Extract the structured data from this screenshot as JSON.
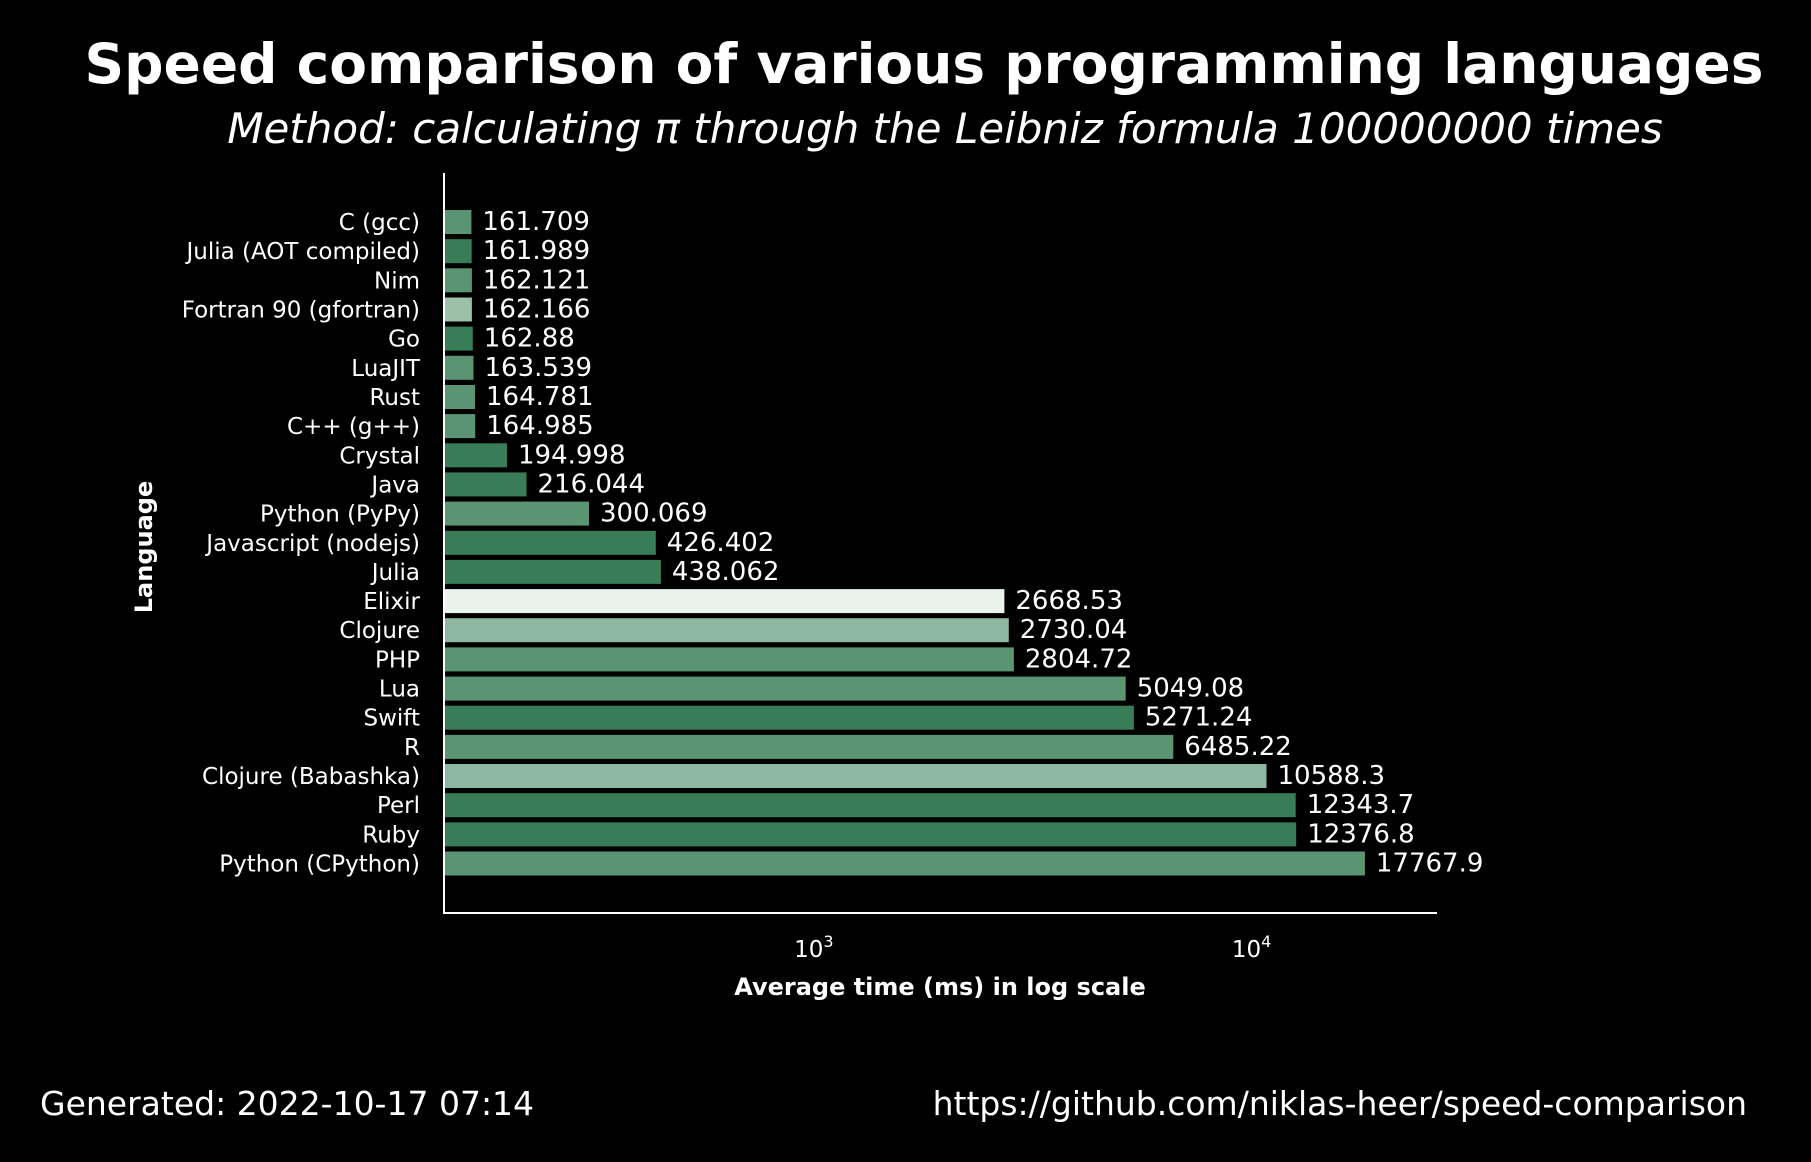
{
  "chart_data": {
    "type": "bar",
    "orientation": "horizontal",
    "title": "Speed comparison of various programming languages",
    "subtitle": "Method: calculating π through the Leibniz formula 100000000 times",
    "xlabel": "Average time (ms) in log scale",
    "ylabel": "Language",
    "xscale": "log",
    "xlim": [
      140,
      21000
    ],
    "xticks": [
      {
        "value": 1000,
        "base": "10",
        "exponent": "3"
      },
      {
        "value": 10000,
        "base": "10",
        "exponent": "4"
      }
    ],
    "grid": false,
    "legend": "none",
    "categories": [
      "C (gcc)",
      "Julia (AOT compiled)",
      "Nim",
      "Fortran 90 (gfortran)",
      "Go",
      "LuaJIT",
      "Rust",
      "C++ (g++)",
      "Crystal",
      "Java",
      "Python (PyPy)",
      "Javascript (nodejs)",
      "Julia",
      "Elixir",
      "Clojure",
      "PHP",
      "Lua",
      "Swift",
      "R",
      "Clojure (Babashka)",
      "Perl",
      "Ruby",
      "Python (CPython)"
    ],
    "values": [
      161.709,
      161.989,
      162.121,
      162.166,
      162.88,
      163.539,
      164.781,
      164.985,
      194.998,
      216.044,
      300.069,
      426.402,
      438.062,
      2668.53,
      2730.04,
      2804.72,
      5049.08,
      5271.24,
      6485.22,
      10588.3,
      12343.7,
      12376.8,
      17767.9
    ],
    "value_labels": [
      "161.709",
      "161.989",
      "162.121",
      "162.166",
      "162.88",
      "163.539",
      "164.781",
      "164.985",
      "194.998",
      "216.044",
      "300.069",
      "426.402",
      "438.062",
      "2668.53",
      "2730.04",
      "2804.72",
      "5049.08",
      "5271.24",
      "6485.22",
      "10588.3",
      "12343.7",
      "12376.8",
      "17767.9"
    ],
    "bar_colors": [
      "#5a9472",
      "#387d57",
      "#5a9472",
      "#9bc1a8",
      "#387d57",
      "#5a9472",
      "#5a9472",
      "#5a9472",
      "#387d57",
      "#387d57",
      "#5a9472",
      "#387d57",
      "#387d57",
      "#eaf2ec",
      "#8db7a0",
      "#5a9472",
      "#5a9472",
      "#387d57",
      "#5a9472",
      "#8db7a0",
      "#387d57",
      "#387d57",
      "#5a9472"
    ]
  },
  "footer": {
    "generated": "Generated: 2022-10-17 07:14",
    "url": "https://github.com/niklas-heer/speed-comparison"
  },
  "colors": {
    "background": "#000000",
    "text": "#ffffff"
  }
}
